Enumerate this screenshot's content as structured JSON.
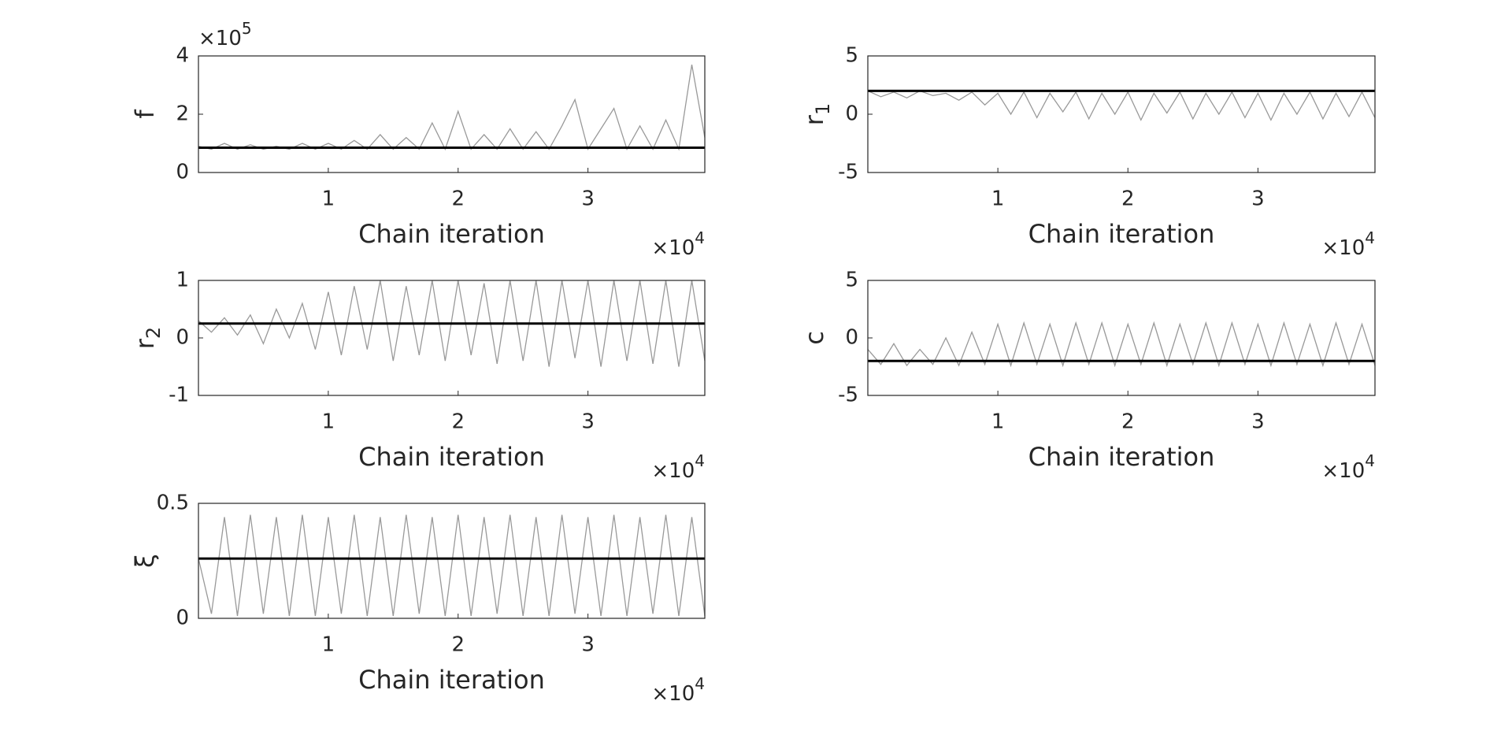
{
  "chart_data": [
    {
      "type": "line",
      "ylabel": "f",
      "xlabel": "Chain iteration",
      "x_multiplier": "×10",
      "x_exponent": "4",
      "y_multiplier": "×10",
      "y_exponent": "5",
      "xlim": [
        0,
        3.9
      ],
      "xticks": [
        1,
        2,
        3
      ],
      "ylim": [
        0,
        4
      ],
      "yticks": [
        0,
        2,
        4
      ],
      "x": [
        0,
        0.1,
        0.2,
        0.3,
        0.4,
        0.5,
        0.6,
        0.7,
        0.8,
        0.9,
        1.0,
        1.1,
        1.2,
        1.3,
        1.4,
        1.5,
        1.6,
        1.7,
        1.8,
        1.9,
        2.0,
        2.1,
        2.2,
        2.3,
        2.4,
        2.5,
        2.6,
        2.7,
        2.8,
        2.9,
        3.0,
        3.1,
        3.2,
        3.3,
        3.4,
        3.5,
        3.6,
        3.7,
        3.8,
        3.9
      ],
      "series": [
        {
          "color": "#999999",
          "values": [
            0.9,
            0.8,
            1.0,
            0.8,
            0.95,
            0.8,
            0.9,
            0.8,
            1.0,
            0.8,
            1.0,
            0.8,
            1.1,
            0.8,
            1.3,
            0.8,
            1.2,
            0.8,
            1.7,
            0.8,
            2.1,
            0.8,
            1.3,
            0.8,
            1.5,
            0.8,
            1.4,
            0.8,
            1.6,
            2.5,
            0.8,
            1.5,
            2.2,
            0.8,
            1.6,
            0.8,
            1.8,
            0.8,
            3.7,
            1.2
          ]
        }
      ],
      "reference_line": {
        "value": 0.85,
        "color": "#000000"
      }
    },
    {
      "type": "line",
      "ylabel": "r",
      "ylabel_subscript": "1",
      "xlabel": "Chain iteration",
      "x_multiplier": "×10",
      "x_exponent": "4",
      "xlim": [
        0,
        3.9
      ],
      "xticks": [
        1,
        2,
        3
      ],
      "ylim": [
        -5,
        5
      ],
      "yticks": [
        -5,
        0,
        5
      ],
      "x": [
        0,
        0.1,
        0.2,
        0.3,
        0.4,
        0.5,
        0.6,
        0.7,
        0.8,
        0.9,
        1.0,
        1.1,
        1.2,
        1.3,
        1.4,
        1.5,
        1.6,
        1.7,
        1.8,
        1.9,
        2.0,
        2.1,
        2.2,
        2.3,
        2.4,
        2.5,
        2.6,
        2.7,
        2.8,
        2.9,
        3.0,
        3.1,
        3.2,
        3.3,
        3.4,
        3.5,
        3.6,
        3.7,
        3.8,
        3.9
      ],
      "series": [
        {
          "color": "#999999",
          "values": [
            2,
            1.5,
            1.9,
            1.4,
            2,
            1.6,
            1.8,
            1.2,
            1.9,
            0.8,
            1.8,
            0,
            1.9,
            -0.3,
            1.8,
            0.2,
            1.9,
            -0.4,
            1.8,
            0,
            1.9,
            -0.5,
            1.8,
            0.1,
            1.9,
            -0.4,
            1.8,
            0,
            1.9,
            -0.3,
            1.8,
            -0.5,
            1.8,
            0,
            1.9,
            -0.4,
            1.8,
            -0.2,
            1.9,
            -0.3
          ]
        }
      ],
      "reference_line": {
        "value": 2,
        "color": "#000000"
      }
    },
    {
      "type": "line",
      "ylabel": "r",
      "ylabel_subscript": "2",
      "xlabel": "Chain iteration",
      "x_multiplier": "×10",
      "x_exponent": "4",
      "xlim": [
        0,
        3.9
      ],
      "xticks": [
        1,
        2,
        3
      ],
      "ylim": [
        -1,
        1
      ],
      "yticks": [
        -1,
        0,
        1
      ],
      "x": [
        0,
        0.1,
        0.2,
        0.3,
        0.4,
        0.5,
        0.6,
        0.7,
        0.8,
        0.9,
        1.0,
        1.1,
        1.2,
        1.3,
        1.4,
        1.5,
        1.6,
        1.7,
        1.8,
        1.9,
        2.0,
        2.1,
        2.2,
        2.3,
        2.4,
        2.5,
        2.6,
        2.7,
        2.8,
        2.9,
        3.0,
        3.1,
        3.2,
        3.3,
        3.4,
        3.5,
        3.6,
        3.7,
        3.8,
        3.9
      ],
      "series": [
        {
          "color": "#999999",
          "values": [
            0.3,
            0.1,
            0.35,
            0.05,
            0.4,
            -0.1,
            0.5,
            0,
            0.6,
            -0.2,
            0.8,
            -0.3,
            0.9,
            -0.2,
            1.0,
            -0.4,
            0.9,
            -0.3,
            1.0,
            -0.4,
            1.0,
            -0.3,
            0.95,
            -0.45,
            1.0,
            -0.4,
            1.0,
            -0.5,
            1.0,
            -0.35,
            1.0,
            -0.5,
            1.0,
            -0.4,
            1.0,
            -0.45,
            1.0,
            -0.5,
            1.0,
            -0.4
          ]
        }
      ],
      "reference_line": {
        "value": 0.25,
        "color": "#000000"
      }
    },
    {
      "type": "line",
      "ylabel": "c",
      "xlabel": "Chain iteration",
      "x_multiplier": "×10",
      "x_exponent": "4",
      "xlim": [
        0,
        3.9
      ],
      "xticks": [
        1,
        2,
        3
      ],
      "ylim": [
        -5,
        5
      ],
      "yticks": [
        -5,
        0,
        5
      ],
      "x": [
        0,
        0.1,
        0.2,
        0.3,
        0.4,
        0.5,
        0.6,
        0.7,
        0.8,
        0.9,
        1.0,
        1.1,
        1.2,
        1.3,
        1.4,
        1.5,
        1.6,
        1.7,
        1.8,
        1.9,
        2.0,
        2.1,
        2.2,
        2.3,
        2.4,
        2.5,
        2.6,
        2.7,
        2.8,
        2.9,
        3.0,
        3.1,
        3.2,
        3.3,
        3.4,
        3.5,
        3.6,
        3.7,
        3.8,
        3.9
      ],
      "series": [
        {
          "color": "#999999",
          "values": [
            -1,
            -2.3,
            -0.5,
            -2.4,
            -1,
            -2.3,
            0,
            -2.4,
            0.5,
            -2.3,
            1.2,
            -2.4,
            1.3,
            -2.3,
            1.2,
            -2.4,
            1.3,
            -2.3,
            1.3,
            -2.4,
            1.2,
            -2.3,
            1.3,
            -2.4,
            1.2,
            -2.3,
            1.3,
            -2.4,
            1.3,
            -2.3,
            1.2,
            -2.4,
            1.3,
            -2.3,
            1.2,
            -2.4,
            1.3,
            -2.3,
            1.2,
            -2.4
          ]
        }
      ],
      "reference_line": {
        "value": -2,
        "color": "#000000"
      }
    },
    {
      "type": "line",
      "ylabel": "ξ",
      "xlabel": "Chain iteration",
      "x_multiplier": "×10",
      "x_exponent": "4",
      "xlim": [
        0,
        3.9
      ],
      "xticks": [
        1,
        2,
        3
      ],
      "ylim": [
        0,
        0.5
      ],
      "yticks": [
        0,
        0.5
      ],
      "x": [
        0,
        0.1,
        0.2,
        0.3,
        0.4,
        0.5,
        0.6,
        0.7,
        0.8,
        0.9,
        1.0,
        1.1,
        1.2,
        1.3,
        1.4,
        1.5,
        1.6,
        1.7,
        1.8,
        1.9,
        2.0,
        2.1,
        2.2,
        2.3,
        2.4,
        2.5,
        2.6,
        2.7,
        2.8,
        2.9,
        3.0,
        3.1,
        3.2,
        3.3,
        3.4,
        3.5,
        3.6,
        3.7,
        3.8,
        3.9
      ],
      "series": [
        {
          "color": "#999999",
          "values": [
            0.26,
            0.02,
            0.44,
            0.01,
            0.45,
            0.02,
            0.44,
            0.01,
            0.45,
            0.01,
            0.44,
            0.02,
            0.45,
            0.01,
            0.44,
            0.01,
            0.45,
            0.02,
            0.44,
            0.01,
            0.45,
            0.01,
            0.44,
            0.02,
            0.45,
            0.01,
            0.44,
            0.01,
            0.45,
            0.02,
            0.44,
            0.01,
            0.45,
            0.01,
            0.44,
            0.02,
            0.45,
            0.01,
            0.44,
            0.01
          ]
        }
      ],
      "reference_line": {
        "value": 0.26,
        "color": "#000000"
      }
    }
  ]
}
